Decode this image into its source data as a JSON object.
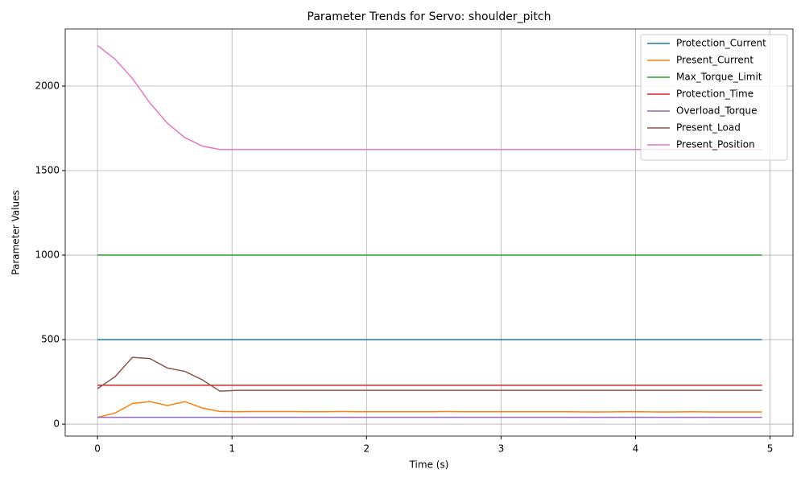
{
  "chart_data": {
    "type": "line",
    "title": "Parameter Trends for Servo: shoulder_pitch",
    "x_label": "Time (s)",
    "y_label": "Parameter Values",
    "x": [
      0,
      0.13,
      0.26,
      0.39,
      0.52,
      0.65,
      0.78,
      0.91,
      1.04,
      1.17,
      1.3,
      1.43,
      1.56,
      1.69,
      1.82,
      1.95,
      2.08,
      2.21,
      2.34,
      2.47,
      2.6,
      2.73,
      2.86,
      2.99,
      3.12,
      3.25,
      3.38,
      3.51,
      3.64,
      3.77,
      3.9,
      4.03,
      4.16,
      4.29,
      4.42,
      4.55,
      4.68,
      4.81,
      4.94
    ],
    "series": [
      {
        "name": "Protection_Current",
        "color": "#1f77b4",
        "values": [
          500,
          500,
          500,
          500,
          500,
          500,
          500,
          500,
          500,
          500,
          500,
          500,
          500,
          500,
          500,
          500,
          500,
          500,
          500,
          500,
          500,
          500,
          500,
          500,
          500,
          500,
          500,
          500,
          500,
          500,
          500,
          500,
          500,
          500,
          500,
          500,
          500,
          500,
          500
        ]
      },
      {
        "name": "Present_Current",
        "color": "#ff7f0e",
        "values": [
          40,
          65,
          122,
          133,
          110,
          133,
          95,
          75,
          73,
          74,
          74,
          74,
          73,
          73,
          74,
          73,
          73,
          73,
          73,
          73,
          74,
          73,
          73,
          73,
          73,
          73,
          73,
          73,
          72,
          72,
          73,
          73,
          72,
          72,
          73,
          72,
          72,
          72,
          72
        ]
      },
      {
        "name": "Max_Torque_Limit",
        "color": "#2ca02c",
        "values": [
          1000,
          1000,
          1000,
          1000,
          1000,
          1000,
          1000,
          1000,
          1000,
          1000,
          1000,
          1000,
          1000,
          1000,
          1000,
          1000,
          1000,
          1000,
          1000,
          1000,
          1000,
          1000,
          1000,
          1000,
          1000,
          1000,
          1000,
          1000,
          1000,
          1000,
          1000,
          1000,
          1000,
          1000,
          1000,
          1000,
          1000,
          1000,
          1000
        ]
      },
      {
        "name": "Protection_Time",
        "color": "#d62728",
        "values": [
          230,
          230,
          230,
          230,
          230,
          230,
          230,
          230,
          230,
          230,
          230,
          230,
          230,
          230,
          230,
          230,
          230,
          230,
          230,
          230,
          230,
          230,
          230,
          230,
          230,
          230,
          230,
          230,
          230,
          230,
          230,
          230,
          230,
          230,
          230,
          230,
          230,
          230,
          230
        ]
      },
      {
        "name": "Overload_Torque",
        "color": "#9467bd",
        "values": [
          40,
          40,
          40,
          40,
          40,
          40,
          40,
          40,
          40,
          40,
          40,
          40,
          40,
          40,
          40,
          40,
          40,
          40,
          40,
          40,
          40,
          40,
          40,
          40,
          40,
          40,
          40,
          40,
          40,
          40,
          40,
          40,
          40,
          40,
          40,
          40,
          40,
          40,
          40
        ]
      },
      {
        "name": "Present_Load",
        "color": "#8c564b",
        "values": [
          210,
          280,
          395,
          388,
          332,
          312,
          262,
          195,
          200,
          200,
          200,
          200,
          200,
          200,
          200,
          200,
          200,
          200,
          200,
          200,
          200,
          200,
          200,
          200,
          200,
          200,
          200,
          200,
          200,
          200,
          200,
          200,
          200,
          200,
          200,
          200,
          200,
          200,
          200
        ]
      },
      {
        "name": "Present_Position",
        "color": "#e377c2",
        "values": [
          2240,
          2160,
          2045,
          1900,
          1780,
          1695,
          1645,
          1625,
          1625,
          1625,
          1625,
          1625,
          1625,
          1625,
          1625,
          1625,
          1625,
          1625,
          1625,
          1625,
          1625,
          1625,
          1625,
          1625,
          1625,
          1625,
          1625,
          1625,
          1625,
          1625,
          1625,
          1625,
          1625,
          1625,
          1625,
          1625,
          1625,
          1625,
          1625
        ]
      }
    ],
    "xlim": [
      -0.24,
      5.17
    ],
    "ylim": [
      -71,
      2338
    ],
    "xticks": [
      0,
      1,
      2,
      3,
      4,
      5
    ],
    "yticks": [
      0,
      500,
      1000,
      1500,
      2000
    ],
    "grid": true,
    "legend": "upper right"
  }
}
